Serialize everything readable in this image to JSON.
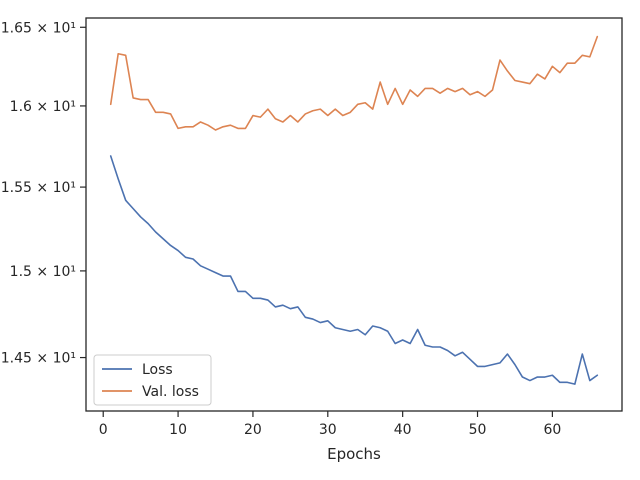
{
  "chart_data": {
    "type": "line",
    "title": "",
    "xlabel": "Epochs",
    "ylabel": "",
    "yscale": "log",
    "xlim": [
      -2.3,
      69.3
    ],
    "ylim": [
      14.2,
      16.56
    ],
    "grid": false,
    "legend_position": "lower-left",
    "xticks": [
      {
        "value": 0,
        "label": "0"
      },
      {
        "value": 10,
        "label": "10"
      },
      {
        "value": 20,
        "label": "20"
      },
      {
        "value": 30,
        "label": "30"
      },
      {
        "value": 40,
        "label": "40"
      },
      {
        "value": 50,
        "label": "50"
      },
      {
        "value": 60,
        "label": "60"
      }
    ],
    "yticks": [
      {
        "value": 14.5,
        "label": "1.45 × 10¹"
      },
      {
        "value": 15.0,
        "label": "1.5 × 10¹"
      },
      {
        "value": 15.5,
        "label": "1.55 × 10¹"
      },
      {
        "value": 16.0,
        "label": "1.6 × 10¹"
      },
      {
        "value": 16.5,
        "label": "1.65 × 10¹"
      }
    ],
    "x": [
      1,
      2,
      3,
      4,
      5,
      6,
      7,
      8,
      9,
      10,
      11,
      12,
      13,
      14,
      15,
      16,
      17,
      18,
      19,
      20,
      21,
      22,
      23,
      24,
      25,
      26,
      27,
      28,
      29,
      30,
      31,
      32,
      33,
      34,
      35,
      36,
      37,
      38,
      39,
      40,
      41,
      42,
      43,
      44,
      45,
      46,
      47,
      48,
      49,
      50,
      51,
      52,
      53,
      54,
      55,
      56,
      57,
      58,
      59,
      60,
      61,
      62,
      63,
      64,
      65,
      66
    ],
    "series": [
      {
        "name": "Loss",
        "color": "#4c72b0",
        "values": [
          15.69,
          15.55,
          15.42,
          15.37,
          15.32,
          15.28,
          15.23,
          15.19,
          15.15,
          15.12,
          15.08,
          15.07,
          15.03,
          15.01,
          14.99,
          14.97,
          14.97,
          14.88,
          14.88,
          14.84,
          14.84,
          14.83,
          14.79,
          14.8,
          14.78,
          14.79,
          14.73,
          14.72,
          14.7,
          14.71,
          14.67,
          14.66,
          14.65,
          14.66,
          14.63,
          14.68,
          14.67,
          14.65,
          14.58,
          14.6,
          14.58,
          14.66,
          14.57,
          14.56,
          14.56,
          14.54,
          14.51,
          14.53,
          14.49,
          14.45,
          14.45,
          14.46,
          14.47,
          14.52,
          14.46,
          14.39,
          14.37,
          14.39,
          14.39,
          14.4,
          14.36,
          14.36,
          14.35,
          14.52,
          14.37,
          14.4
        ]
      },
      {
        "name": "Val. loss",
        "color": "#dd8452",
        "values": [
          16.01,
          16.33,
          16.32,
          16.05,
          16.04,
          16.04,
          15.96,
          15.96,
          15.95,
          15.86,
          15.87,
          15.87,
          15.9,
          15.88,
          15.85,
          15.87,
          15.88,
          15.86,
          15.86,
          15.94,
          15.93,
          15.98,
          15.92,
          15.9,
          15.94,
          15.9,
          15.95,
          15.97,
          15.98,
          15.94,
          15.98,
          15.94,
          15.96,
          16.01,
          16.02,
          15.98,
          16.15,
          16.01,
          16.11,
          16.01,
          16.1,
          16.06,
          16.11,
          16.11,
          16.08,
          16.11,
          16.09,
          16.11,
          16.07,
          16.09,
          16.06,
          16.1,
          16.29,
          16.22,
          16.16,
          16.15,
          16.14,
          16.2,
          16.17,
          16.25,
          16.21,
          16.27,
          16.27,
          16.32,
          16.31,
          16.44
        ]
      }
    ]
  }
}
